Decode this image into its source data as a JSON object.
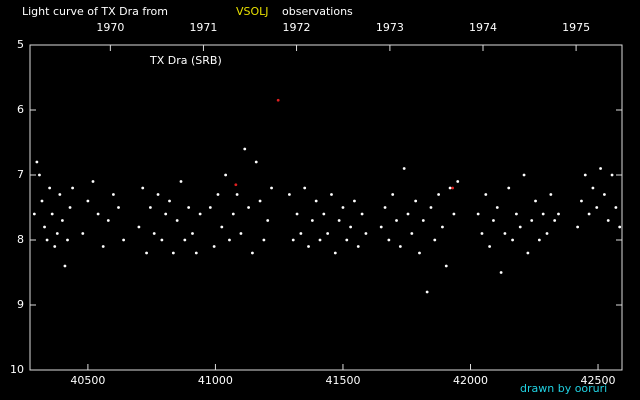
{
  "chart_data": {
    "type": "scatter",
    "title": "Light curve of TX Dra from",
    "title_highlight": "VSOLJ",
    "title_suffix": "observations",
    "annotation": "TX Dra (SRB)",
    "credit": "drawn by ooruri",
    "xlim": [
      40273,
      42594
    ],
    "ylim": [
      10,
      5
    ],
    "xticks": [
      40500,
      41000,
      41500,
      42000,
      42500
    ],
    "x2ticks": [
      {
        "value": 40588,
        "label": "1970"
      },
      {
        "value": 40953,
        "label": "1971"
      },
      {
        "value": 41318,
        "label": "1972"
      },
      {
        "value": 41684,
        "label": "1973"
      },
      {
        "value": 42049,
        "label": "1974"
      },
      {
        "value": 42414,
        "label": "1975"
      }
    ],
    "yticks": [
      5,
      6,
      7,
      8,
      9,
      10
    ],
    "series": [
      {
        "color": "#ffffff",
        "x": [
          40290,
          40300,
          40310,
          40320,
          40330,
          40340,
          40350,
          40360,
          40370,
          40380,
          40390,
          40400,
          40410,
          40420,
          40430,
          40440,
          40480,
          40500,
          40520,
          40540,
          40560,
          40580,
          40600,
          40620,
          40640,
          40700,
          40715,
          40730,
          40745,
          40760,
          40775,
          40790,
          40805,
          40820,
          40835,
          40850,
          40865,
          40880,
          40895,
          40910,
          40925,
          40940,
          40980,
          40995,
          41010,
          41025,
          41040,
          41055,
          41070,
          41085,
          41100,
          41115,
          41130,
          41145,
          41160,
          41175,
          41190,
          41205,
          41220,
          41290,
          41305,
          41320,
          41335,
          41350,
          41365,
          41380,
          41395,
          41410,
          41425,
          41440,
          41455,
          41470,
          41485,
          41500,
          41515,
          41530,
          41545,
          41560,
          41575,
          41590,
          41650,
          41665,
          41680,
          41695,
          41710,
          41725,
          41740,
          41755,
          41770,
          41785,
          41800,
          41815,
          41830,
          41845,
          41860,
          41875,
          41890,
          41905,
          41920,
          41935,
          41950,
          42030,
          42045,
          42060,
          42075,
          42090,
          42105,
          42120,
          42135,
          42150,
          42165,
          42180,
          42195,
          42210,
          42225,
          42240,
          42255,
          42270,
          42285,
          42300,
          42315,
          42330,
          42345,
          42420,
          42435,
          42450,
          42465,
          42480,
          42495,
          42510,
          42525,
          42540,
          42555,
          42570,
          42585
        ],
        "values": [
          7.6,
          6.8,
          7.0,
          7.4,
          7.8,
          8.0,
          7.2,
          7.6,
          8.1,
          7.9,
          7.3,
          7.7,
          8.4,
          8.0,
          7.5,
          7.2,
          7.9,
          7.4,
          7.1,
          7.6,
          8.1,
          7.7,
          7.3,
          7.5,
          8.0,
          7.8,
          7.2,
          8.2,
          7.5,
          7.9,
          7.3,
          8.0,
          7.6,
          7.4,
          8.2,
          7.7,
          7.1,
          8.0,
          7.5,
          7.9,
          8.2,
          7.6,
          7.5,
          8.1,
          7.3,
          7.8,
          7.0,
          8.0,
          7.6,
          7.3,
          7.9,
          6.6,
          7.5,
          8.2,
          6.8,
          7.4,
          8.0,
          7.7,
          7.2,
          7.3,
          8.0,
          7.6,
          7.9,
          7.2,
          8.1,
          7.7,
          7.4,
          8.0,
          7.6,
          7.9,
          7.3,
          8.2,
          7.7,
          7.5,
          8.0,
          7.8,
          7.4,
          8.1,
          7.6,
          7.9,
          7.8,
          7.5,
          8.0,
          7.3,
          7.7,
          8.1,
          6.9,
          7.6,
          7.9,
          7.4,
          8.2,
          7.7,
          8.8,
          7.5,
          8.0,
          7.3,
          7.8,
          8.4,
          7.2,
          7.6,
          7.1,
          7.6,
          7.9,
          7.3,
          8.1,
          7.7,
          7.5,
          8.5,
          7.9,
          7.2,
          8.0,
          7.6,
          7.8,
          7.0,
          8.2,
          7.7,
          7.4,
          8.0,
          7.6,
          7.9,
          7.3,
          7.7,
          7.6,
          7.8,
          7.4,
          7.0,
          7.6,
          7.2,
          7.5,
          6.9,
          7.3,
          7.7,
          7.0,
          7.5,
          7.8
        ]
      },
      {
        "color": "#e02020",
        "x": [
          41080,
          41246,
          41930
        ],
        "values": [
          7.15,
          5.85,
          7.2
        ]
      }
    ]
  }
}
